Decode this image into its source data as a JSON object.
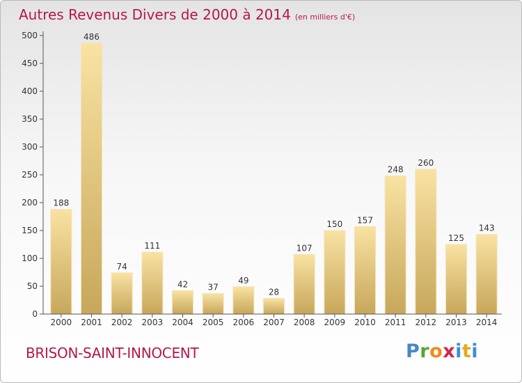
{
  "title": "Autres Revenus Divers de 2000 à 2014",
  "subtitle": "(en milliers d'€)",
  "commune": "BRISON-SAINT-INNOCENT",
  "logo": {
    "text": "Proxiti",
    "colors": [
      "#4a86c8",
      "#5aa336",
      "#f08a1c",
      "#d6244a",
      "#3b8fd1",
      "#e6a81c",
      "#3b8fd1"
    ]
  },
  "colors": {
    "title": "#b5174b",
    "bar_light": "#f7df9c",
    "bar_dark": "#c9a85c",
    "axis": "#555555"
  },
  "chart_data": {
    "type": "bar",
    "categories": [
      "2000",
      "2001",
      "2002",
      "2003",
      "2004",
      "2005",
      "2006",
      "2007",
      "2008",
      "2009",
      "2010",
      "2011",
      "2012",
      "2013",
      "2014"
    ],
    "values": [
      188,
      486,
      74,
      111,
      42,
      37,
      49,
      28,
      107,
      150,
      157,
      248,
      260,
      125,
      143
    ],
    "ylim": [
      0,
      500
    ],
    "yticks": [
      0,
      50,
      100,
      150,
      200,
      250,
      300,
      350,
      400,
      450,
      500
    ],
    "grid": false,
    "xlabel": "",
    "ylabel": ""
  }
}
